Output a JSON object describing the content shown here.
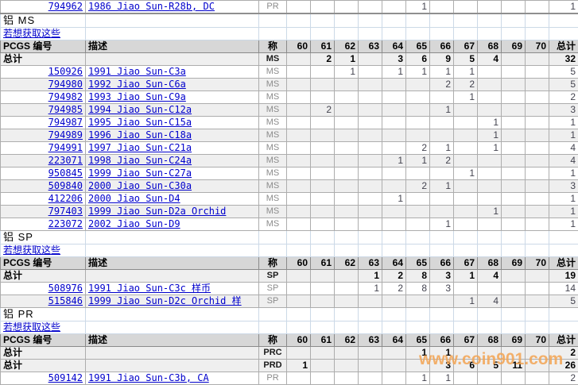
{
  "watermark": "www.coin901.com",
  "colors": {
    "link": "#0000cc",
    "header_bg": "#d7d7d7",
    "stripe_bg": "#efefef",
    "table_grid": "#adadad",
    "section_grid": "#ccd9e7",
    "watermark_orange": "#f2a352",
    "grade_label_gray": "#8b8b8b"
  },
  "columns": {
    "pcgs_label": "PCGS 编号",
    "desc_label": "描述",
    "grade_label": "称",
    "grades": [
      "60",
      "61",
      "62",
      "63",
      "64",
      "65",
      "66",
      "67",
      "68",
      "69",
      "70"
    ],
    "total_label": "总计"
  },
  "totals_row_label": "总计",
  "link_text": "若想获取这些",
  "top_partial_row": {
    "pcgs": "794962",
    "desc": "1986 Jiao Sun-R28b, DC",
    "grade": "PR",
    "values": [
      "",
      "",
      "",
      "",
      "",
      "1",
      "",
      "",
      "",
      "",
      ""
    ],
    "total": "1"
  },
  "sections": [
    {
      "title": "铝 MS",
      "totals": [
        {
          "grade": "MS",
          "values": [
            "",
            "2",
            "1",
            "",
            "3",
            "6",
            "9",
            "5",
            "4",
            "",
            ""
          ],
          "total": "32"
        }
      ],
      "rows": [
        {
          "pcgs": "150926",
          "desc": "1991 Jiao Sun-C3a",
          "grade": "MS",
          "values": [
            "",
            "",
            "1",
            "",
            "1",
            "1",
            "1",
            "1",
            "",
            "",
            ""
          ],
          "total": "5"
        },
        {
          "pcgs": "794980",
          "desc": "1992 Jiao Sun-C6a",
          "grade": "MS",
          "values": [
            "",
            "",
            "",
            "",
            "",
            "",
            "2",
            "2",
            "",
            "",
            ""
          ],
          "total": "5"
        },
        {
          "pcgs": "794982",
          "desc": "1993 Jiao Sun-C9a",
          "grade": "MS",
          "values": [
            "",
            "",
            "",
            "",
            "",
            "",
            "",
            "1",
            "",
            "",
            ""
          ],
          "total": "2"
        },
        {
          "pcgs": "794985",
          "desc": "1994 Jiao Sun-C12a",
          "grade": "MS",
          "values": [
            "",
            "2",
            "",
            "",
            "",
            "",
            "1",
            "",
            "",
            "",
            ""
          ],
          "total": "3"
        },
        {
          "pcgs": "794987",
          "desc": "1995 Jiao Sun-C15a",
          "grade": "MS",
          "values": [
            "",
            "",
            "",
            "",
            "",
            "",
            "",
            "",
            "1",
            "",
            ""
          ],
          "total": "1"
        },
        {
          "pcgs": "794989",
          "desc": "1996 Jiao Sun-C18a",
          "grade": "MS",
          "values": [
            "",
            "",
            "",
            "",
            "",
            "",
            "",
            "",
            "1",
            "",
            ""
          ],
          "total": "1"
        },
        {
          "pcgs": "794991",
          "desc": "1997 Jiao Sun-C21a",
          "grade": "MS",
          "values": [
            "",
            "",
            "",
            "",
            "",
            "2",
            "1",
            "",
            "1",
            "",
            ""
          ],
          "total": "4"
        },
        {
          "pcgs": "223071",
          "desc": "1998 Jiao Sun-C24a",
          "grade": "MS",
          "values": [
            "",
            "",
            "",
            "",
            "1",
            "1",
            "2",
            "",
            "",
            "",
            ""
          ],
          "total": "4"
        },
        {
          "pcgs": "950845",
          "desc": "1999 Jiao Sun-C27a",
          "grade": "MS",
          "values": [
            "",
            "",
            "",
            "",
            "",
            "",
            "",
            "1",
            "",
            "",
            ""
          ],
          "total": "1"
        },
        {
          "pcgs": "509840",
          "desc": "2000 Jiao Sun-C30a",
          "grade": "MS",
          "values": [
            "",
            "",
            "",
            "",
            "",
            "2",
            "1",
            "",
            "",
            "",
            ""
          ],
          "total": "3"
        },
        {
          "pcgs": "412206",
          "desc": "2000 Jiao Sun-D4",
          "grade": "MS",
          "values": [
            "",
            "",
            "",
            "",
            "1",
            "",
            "",
            "",
            "",
            "",
            ""
          ],
          "total": "1"
        },
        {
          "pcgs": "797403",
          "desc": "1999 Jiao Sun-D2a Orchid",
          "grade": "MS",
          "values": [
            "",
            "",
            "",
            "",
            "",
            "",
            "",
            "",
            "1",
            "",
            ""
          ],
          "total": "1"
        },
        {
          "pcgs": "223072",
          "desc": "2002 Jiao Sun-D9",
          "grade": "MS",
          "values": [
            "",
            "",
            "",
            "",
            "",
            "",
            "1",
            "",
            "",
            "",
            ""
          ],
          "total": "1"
        }
      ]
    },
    {
      "title": "铝 SP",
      "totals": [
        {
          "grade": "SP",
          "values": [
            "",
            "",
            "",
            "1",
            "2",
            "8",
            "3",
            "1",
            "4",
            "",
            ""
          ],
          "total": "19"
        }
      ],
      "rows": [
        {
          "pcgs": "508976",
          "desc": "1991 Jiao Sun-C3c 样币",
          "grade": "SP",
          "values": [
            "",
            "",
            "",
            "1",
            "2",
            "8",
            "3",
            "",
            "",
            "",
            ""
          ],
          "total": "14"
        },
        {
          "pcgs": "515846",
          "desc": "1999 Jiao Sun-D2c Orchid 样",
          "grade": "SP",
          "values": [
            "",
            "",
            "",
            "",
            "",
            "",
            "",
            "1",
            "4",
            "",
            ""
          ],
          "total": "5"
        }
      ]
    },
    {
      "title": "铝 PR",
      "totals": [
        {
          "grade": "PRC",
          "values": [
            "",
            "",
            "",
            "",
            "",
            "1",
            "1",
            "",
            "",
            "",
            ""
          ],
          "total": "2"
        },
        {
          "grade": "PRD",
          "values": [
            "1",
            "",
            "",
            "",
            "",
            "",
            "3",
            "6",
            "5",
            "11",
            ""
          ],
          "total": "26"
        }
      ],
      "rows": [
        {
          "pcgs": "509142",
          "desc": "1991 Jiao Sun-C3b, CA",
          "grade": "PR",
          "values": [
            "",
            "",
            "",
            "",
            "",
            "1",
            "1",
            "",
            "",
            "",
            ""
          ],
          "total": "2"
        }
      ]
    }
  ]
}
